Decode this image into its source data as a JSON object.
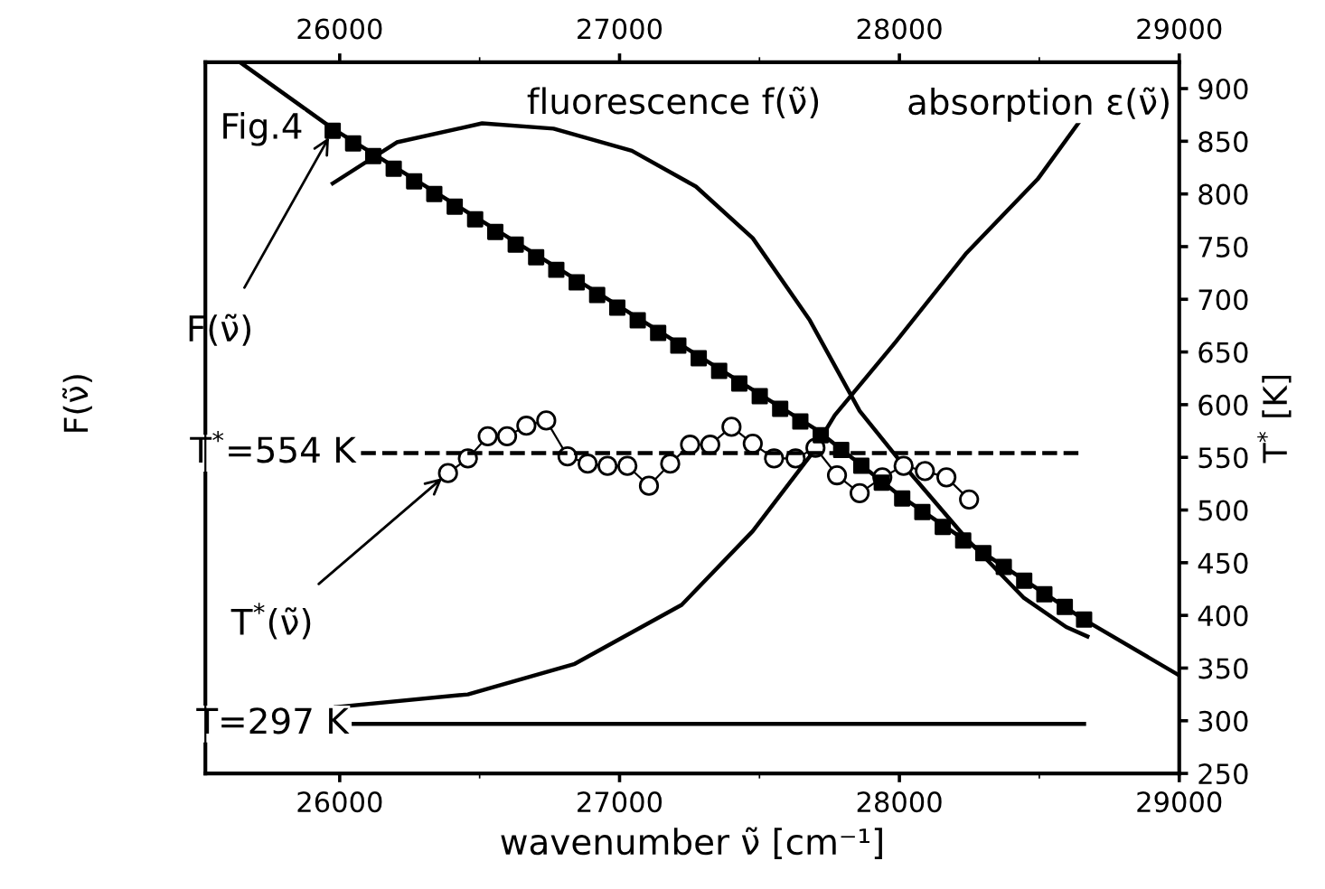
{
  "chart_data": {
    "type": "line",
    "xlabel": "wavenumber ν̃ [cm⁻¹]",
    "ylabel": "T$^{*}$ [K]",
    "xlim": [
      25520,
      29000
    ],
    "xticks": [
      26000,
      27000,
      28000,
      29000
    ],
    "x2lim": [
      25520,
      29000
    ],
    "x2ticks": [
      26000,
      27000,
      28000,
      29000
    ],
    "ylim": [
      250,
      925
    ],
    "yticks": [
      250,
      300,
      350,
      400,
      450,
      500,
      550,
      600,
      650,
      700,
      750,
      800,
      850,
      900
    ],
    "grid": false,
    "legend": false,
    "series": [
      {
        "color": "#000000",
        "marker": "none",
        "line_style": "solid",
        "x": [
          25644,
          25975,
          26959,
          27705,
          28000,
          28330,
          28660,
          29000
        ],
        "values": [
          925,
          862,
          700,
          576,
          514,
          454,
          396,
          343
        ]
      },
      {
        "type": "scatter",
        "color": "#000000",
        "marker": "square",
        "x": [
          25975,
          26048,
          26120,
          26193,
          26266,
          26338,
          26411,
          26484,
          26556,
          26629,
          26702,
          26774,
          26847,
          26920,
          26992,
          27065,
          27138,
          27210,
          27283,
          27356,
          27428,
          27501,
          27574,
          27646,
          27719,
          27792,
          27864,
          27937,
          28010,
          28082,
          28155,
          28228,
          28300,
          28373,
          28446,
          28518,
          28591,
          28660
        ],
        "values": [
          860,
          848,
          836,
          824,
          812,
          800,
          788,
          776,
          764,
          752,
          740,
          728,
          716,
          704,
          692,
          680,
          668,
          656,
          644,
          632,
          620,
          608,
          596,
          584,
          571,
          557,
          542,
          526,
          511,
          498,
          484,
          471,
          459,
          446,
          433,
          420,
          408,
          396
        ]
      },
      {
        "color": "#000000",
        "marker": "none",
        "line_style": "solid",
        "x": [
          25975,
          26204,
          26509,
          26764,
          27044,
          27273,
          27476,
          27680,
          27858,
          28010,
          28239,
          28443,
          28596,
          28672
        ],
        "values": [
          810,
          849,
          867,
          862,
          841,
          807,
          758,
          680,
          594,
          544,
          473,
          417,
          389,
          380
        ]
      },
      {
        "color": "#000000",
        "marker": "none",
        "line_style": "solid",
        "x": [
          25987,
          26458,
          26840,
          27222,
          27476,
          27680,
          27769,
          27985,
          28240,
          28494,
          28647
        ],
        "values": [
          313,
          325,
          354,
          410,
          480,
          551,
          590,
          659,
          744,
          814,
          870
        ]
      },
      {
        "color": "#000000",
        "marker": "circle",
        "line_style": "solid",
        "x": [
          26387,
          26458,
          26529,
          26598,
          26667,
          26738,
          26814,
          26886,
          26957,
          27028,
          27105,
          27181,
          27252,
          27324,
          27400,
          27476,
          27552,
          27629,
          27700,
          27777,
          27858,
          27939,
          28015,
          28091,
          28168,
          28249
        ],
        "values": [
          535,
          549,
          570,
          570,
          580,
          585,
          551,
          544,
          542,
          542,
          523,
          544,
          562,
          562,
          579,
          563,
          549,
          549,
          559,
          533,
          516,
          531,
          542,
          537,
          531,
          510
        ]
      },
      {
        "color": "#000000",
        "marker": "none",
        "line_style": "dashed",
        "x": [
          26076,
          28660
        ],
        "values": [
          554,
          554
        ]
      },
      {
        "color": "#000000",
        "marker": "none",
        "line_style": "solid",
        "x": [
          26050,
          28660
        ],
        "values": [
          297,
          297
        ]
      }
    ],
    "annotations": [
      "Fig.4",
      "F(ν̃)",
      "fluorescence f(ν̃)",
      "absorption ε(ν̃)",
      {
        "text": "F(ν̃)",
        "x": 25975,
        "y": 860
      },
      {
        "text": "T$^{*}$(ν̃)",
        "x": 26387,
        "y": 535
      },
      "T$^{*}$=554 K",
      "T=297 K"
    ]
  }
}
